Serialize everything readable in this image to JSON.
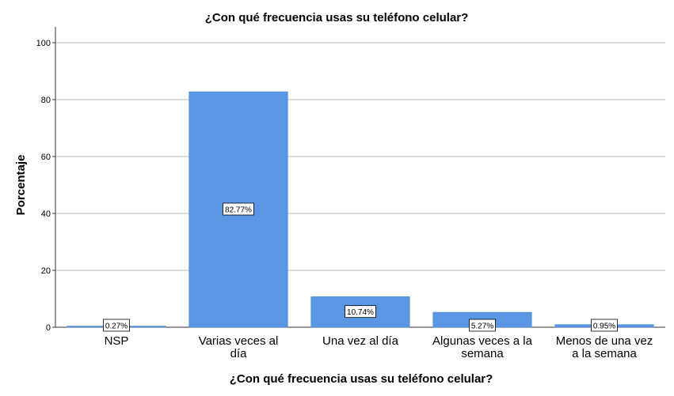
{
  "chart_data": {
    "type": "bar",
    "title": "¿Con qué frecuencia usas su teléfono celular?",
    "xlabel": "¿Con qué frecuencia usas su teléfono celular?",
    "ylabel": "Porcentaje",
    "categories": [
      [
        "NSP"
      ],
      [
        "Varias veces al",
        "día"
      ],
      [
        "Una vez al día"
      ],
      [
        "Algunas veces a la",
        "semana"
      ],
      [
        "Menos de una vez",
        "a la semana"
      ]
    ],
    "values": [
      0.27,
      82.77,
      10.74,
      5.27,
      0.95
    ],
    "data_labels": [
      "0.27%",
      "82.77%",
      "10.74%",
      "5.27%",
      "0.95%"
    ],
    "ylim": [
      0,
      100
    ],
    "yticks": [
      0,
      20,
      40,
      60,
      80,
      100
    ],
    "grid": true,
    "bar_color": "#5b96e4"
  }
}
